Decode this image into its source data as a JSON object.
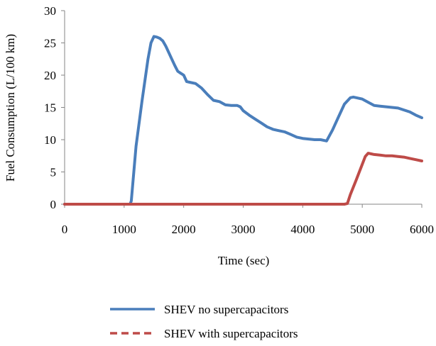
{
  "chart_data": {
    "type": "line",
    "title": "",
    "xlabel": "Time (sec)",
    "ylabel": "Fuel Consumption (L/100 km)",
    "xlim": [
      0,
      6000
    ],
    "ylim": [
      0,
      30
    ],
    "xticks": [
      "0",
      "1000",
      "2000",
      "3000",
      "4000",
      "5000",
      "6000"
    ],
    "yticks": [
      "0",
      "5",
      "10",
      "15",
      "20",
      "25",
      "30"
    ],
    "grid": false,
    "legend_position": "bottom",
    "series": [
      {
        "name": "SHEV no supercapacitors",
        "color": "#4a7ebb",
        "style": "solid",
        "x": [
          0,
          1100,
          1120,
          1200,
          1300,
          1400,
          1450,
          1500,
          1550,
          1600,
          1650,
          1700,
          1750,
          1800,
          1850,
          1900,
          1950,
          2000,
          2050,
          2100,
          2200,
          2300,
          2400,
          2500,
          2600,
          2700,
          2800,
          2900,
          2950,
          3000,
          3100,
          3200,
          3300,
          3400,
          3500,
          3600,
          3700,
          3800,
          3900,
          4000,
          4100,
          4200,
          4300,
          4400,
          4500,
          4600,
          4700,
          4800,
          4850,
          4900,
          5000,
          5100,
          5200,
          5300,
          5400,
          5500,
          5600,
          5700,
          5800,
          5900,
          6000
        ],
        "y": [
          0,
          0,
          0.5,
          9,
          16,
          22.5,
          25,
          26,
          25.9,
          25.7,
          25.3,
          24.5,
          23.5,
          22.5,
          21.5,
          20.6,
          20.3,
          20,
          19,
          18.9,
          18.7,
          18,
          17,
          16.1,
          15.9,
          15.4,
          15.3,
          15.3,
          15.1,
          14.5,
          13.8,
          13.2,
          12.6,
          12,
          11.6,
          11.4,
          11.2,
          10.8,
          10.4,
          10.2,
          10.1,
          10,
          10,
          9.8,
          11.5,
          13.5,
          15.5,
          16.5,
          16.6,
          16.5,
          16.3,
          15.8,
          15.3,
          15.2,
          15.1,
          15,
          14.9,
          14.6,
          14.3,
          13.8,
          13.4
        ]
      },
      {
        "name": "SHEV with supercapacitors",
        "color": "#be4b48",
        "style": "dashed",
        "x": [
          0,
          1000,
          2000,
          3000,
          4000,
          4700,
          4750,
          4800,
          4900,
          5000,
          5050,
          5100,
          5150,
          5200,
          5300,
          5400,
          5500,
          5600,
          5700,
          5800,
          5900,
          6000
        ],
        "y": [
          0,
          0,
          0,
          0,
          0,
          0,
          0.1,
          1.5,
          3.8,
          6.2,
          7.4,
          7.9,
          7.8,
          7.7,
          7.6,
          7.5,
          7.5,
          7.4,
          7.3,
          7.1,
          6.9,
          6.7
        ]
      }
    ]
  }
}
